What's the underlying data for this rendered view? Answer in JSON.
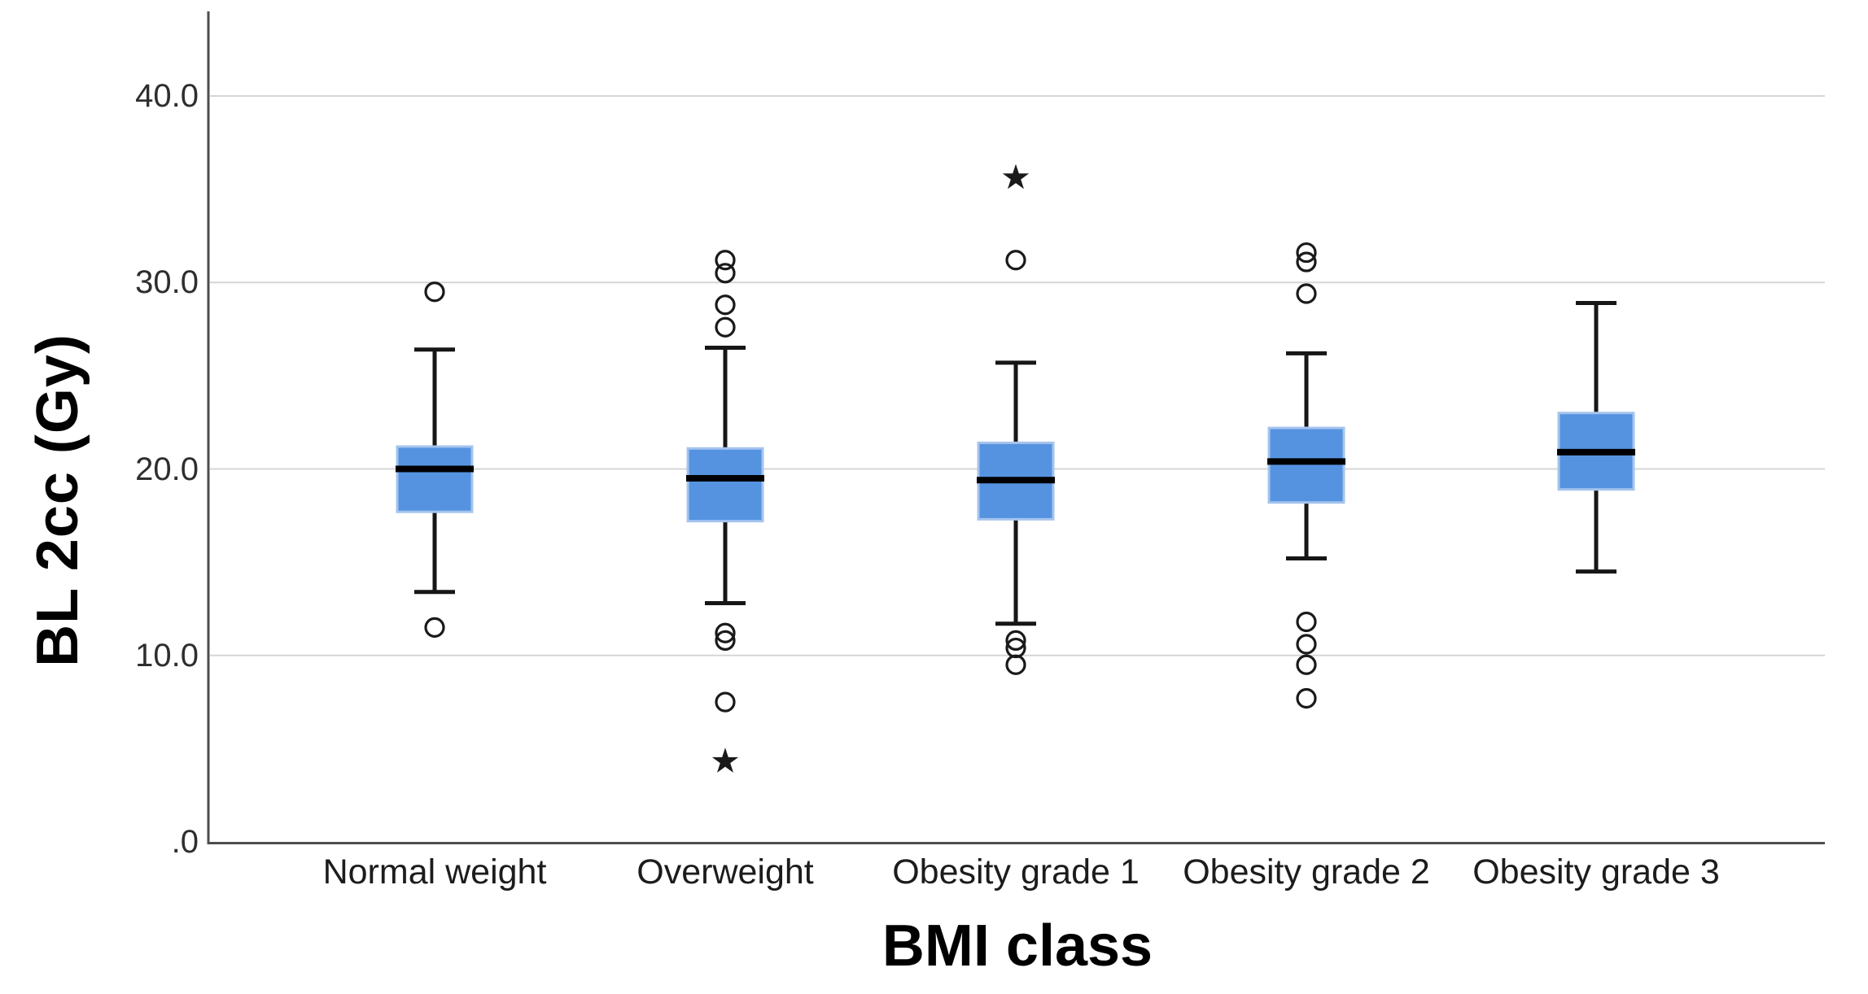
{
  "figure": {
    "y_axis_title": "BL 2cc (Gy)",
    "x_axis_title": "BMI class"
  },
  "y_axis": {
    "tick_labels": [
      ".0",
      "10.0",
      "20.0",
      "30.0",
      "40.0"
    ],
    "tick_values": [
      0,
      10,
      20,
      30,
      40
    ],
    "min": 0,
    "max": 44.5
  },
  "chart_data": {
    "type": "boxplot",
    "title": "",
    "xlabel": "BMI class",
    "ylabel": "BL 2cc (Gy)",
    "ylim": [
      0,
      44.5
    ],
    "grid": "horizontal-gridlines-at-10-20-30-40",
    "legend": "none",
    "outlier_marker": "open-circle",
    "extreme_marker": "star",
    "categories": [
      "Normal weight",
      "Overweight",
      "Obesity grade 1",
      "Obesity grade 2",
      "Obesity grade 3"
    ],
    "series": [
      {
        "category": "Normal weight",
        "whisker_low": 13.4,
        "q1": 17.7,
        "median": 20.0,
        "q3": 21.2,
        "whisker_high": 26.4,
        "outliers": [
          29.5,
          11.5
        ],
        "extremes": []
      },
      {
        "category": "Overweight",
        "whisker_low": 12.8,
        "q1": 17.2,
        "median": 19.5,
        "q3": 21.1,
        "whisker_high": 26.5,
        "outliers": [
          31.2,
          30.5,
          28.8,
          27.6,
          11.2,
          10.8,
          7.5
        ],
        "extremes": [
          4.4
        ]
      },
      {
        "category": "Obesity grade 1",
        "whisker_low": 11.7,
        "q1": 17.3,
        "median": 19.4,
        "q3": 21.4,
        "whisker_high": 25.7,
        "outliers": [
          31.2,
          10.8,
          10.4,
          9.5
        ],
        "extremes": [
          35.7
        ]
      },
      {
        "category": "Obesity grade 2",
        "whisker_low": 15.2,
        "q1": 18.2,
        "median": 20.4,
        "q3": 22.2,
        "whisker_high": 26.2,
        "outliers": [
          31.6,
          31.1,
          29.4,
          11.8,
          10.6,
          9.5,
          7.7
        ],
        "extremes": []
      },
      {
        "category": "Obesity grade 3",
        "whisker_low": 14.5,
        "q1": 18.9,
        "median": 20.9,
        "q3": 23.0,
        "whisker_high": 28.9,
        "outliers": [],
        "extremes": []
      }
    ]
  },
  "colors": {
    "box_fill": "#5593e0",
    "box_border": "#a5c4ee",
    "median": "#000000",
    "whisker": "#161616",
    "outlier_stroke": "#1a1a1a",
    "gridline": "#d6d6d6",
    "axis_line": "#4d4d4d",
    "background": "#ffffff"
  }
}
